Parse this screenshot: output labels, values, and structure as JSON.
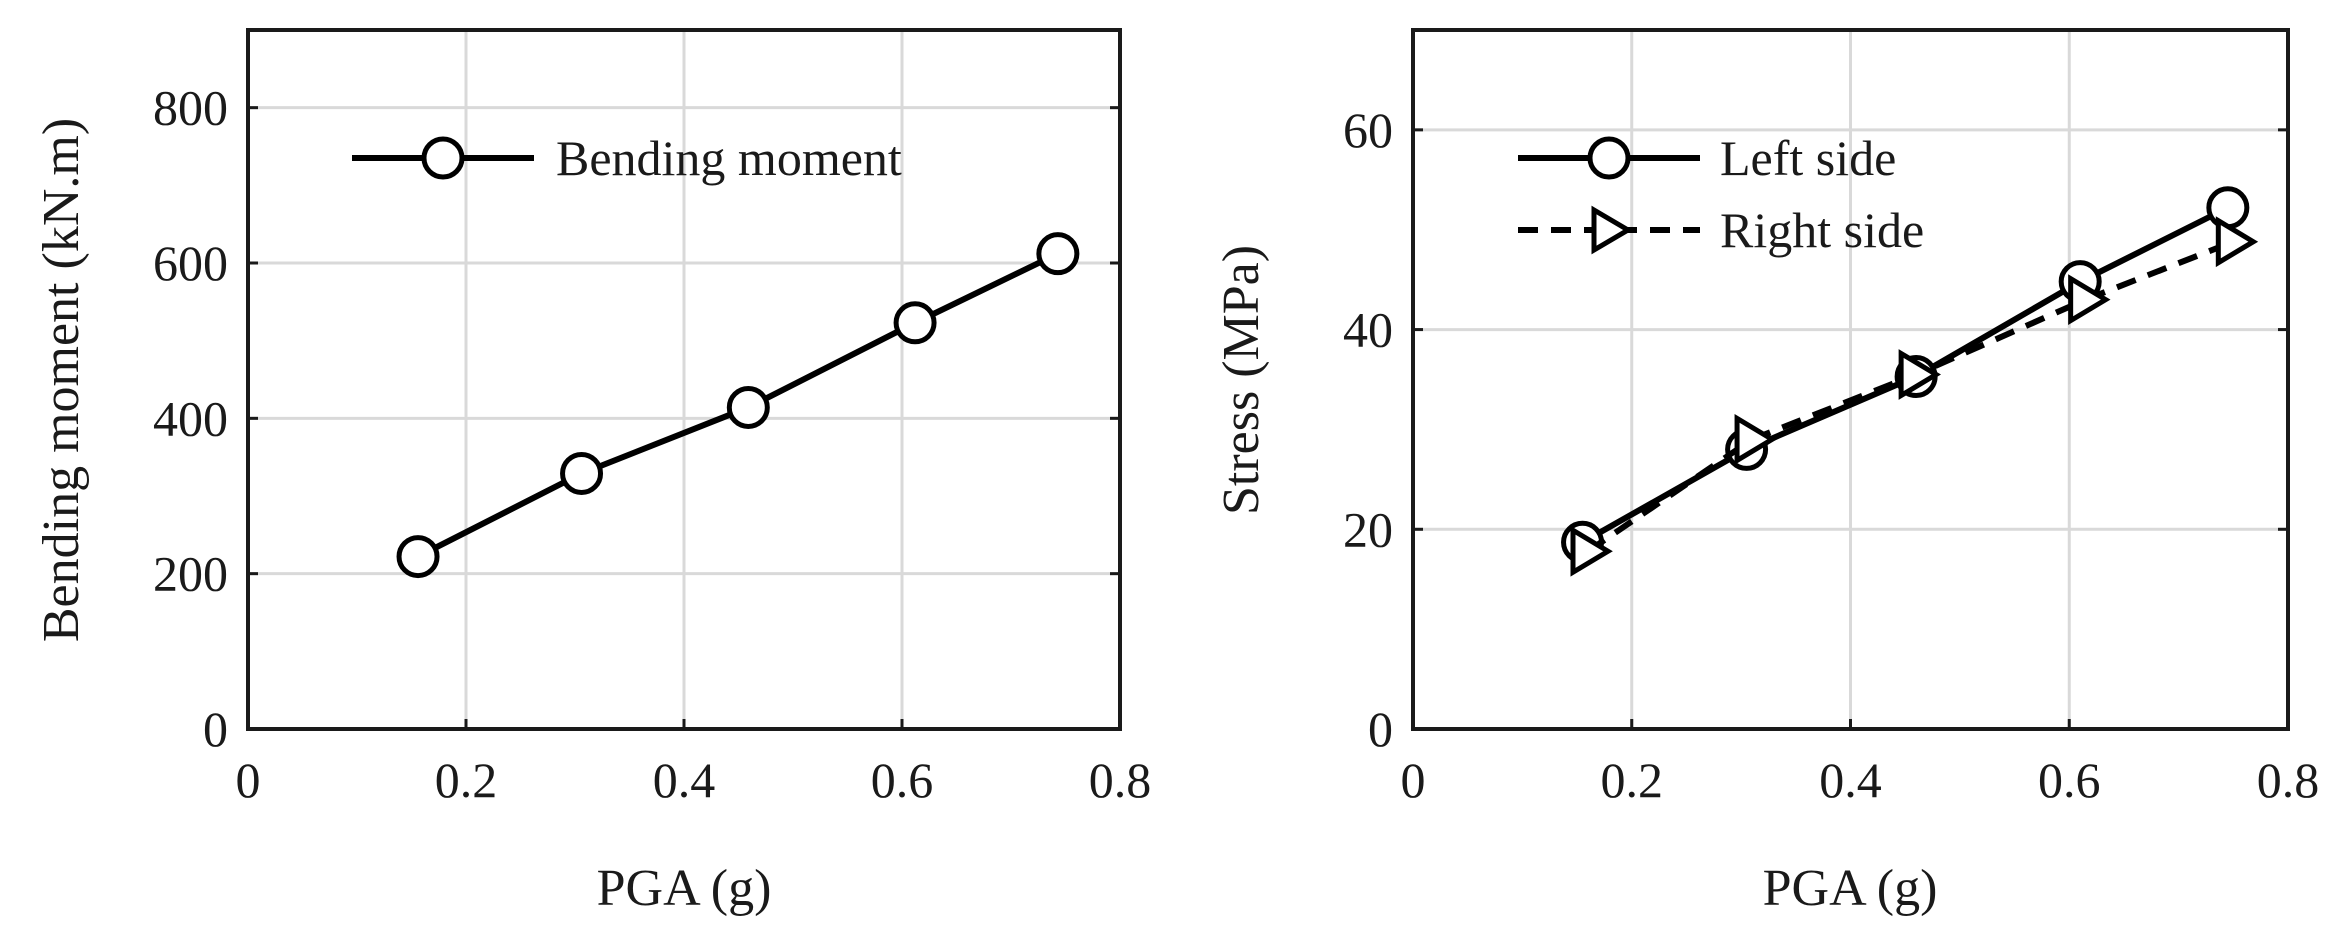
{
  "chart_data": [
    {
      "type": "line",
      "title": "",
      "xlabel": "PGA (g)",
      "ylabel": "Bending moment (kN.m)",
      "xlim": [
        0,
        0.8
      ],
      "ylim": [
        0,
        900
      ],
      "xticks": [
        0,
        0.2,
        0.4,
        0.6,
        0.8
      ],
      "xtick_labels": [
        "0",
        "0.2",
        "0.4",
        "0.6",
        "0.8"
      ],
      "yticks": [
        0,
        200,
        400,
        600,
        800
      ],
      "ytick_labels": [
        "0",
        "200",
        "400",
        "600",
        "800"
      ],
      "grid": true,
      "legend_position": "top-left",
      "series": [
        {
          "name": "Bending moment",
          "line_style": "solid",
          "marker": "circle",
          "color": "#000000",
          "x": [
            0.156,
            0.306,
            0.459,
            0.612,
            0.743
          ],
          "y": [
            222,
            329,
            414,
            523,
            612
          ]
        }
      ]
    },
    {
      "type": "line",
      "title": "",
      "xlabel": "PGA (g)",
      "ylabel": "Stress (MPa)",
      "xlim": [
        0,
        0.8
      ],
      "ylim": [
        0,
        70
      ],
      "xticks": [
        0,
        0.2,
        0.4,
        0.6,
        0.8
      ],
      "xtick_labels": [
        "0",
        "0.2",
        "0.4",
        "0.6",
        "0.8"
      ],
      "yticks": [
        0,
        20,
        40,
        60
      ],
      "ytick_labels": [
        "0",
        "20",
        "40",
        "60"
      ],
      "grid": true,
      "legend_position": "top-left",
      "series": [
        {
          "name": "Left side",
          "line_style": "solid",
          "marker": "circle",
          "color": "#000000",
          "x": [
            0.155,
            0.305,
            0.46,
            0.61,
            0.745
          ],
          "y": [
            18.7,
            28.0,
            35.3,
            44.8,
            52.2
          ]
        },
        {
          "name": "Right side",
          "line_style": "dashed",
          "marker": "triangle-right",
          "color": "#000000",
          "x": [
            0.16,
            0.31,
            0.46,
            0.615,
            0.75
          ],
          "y": [
            17.8,
            29.0,
            35.5,
            43.0,
            48.8
          ]
        }
      ]
    }
  ]
}
